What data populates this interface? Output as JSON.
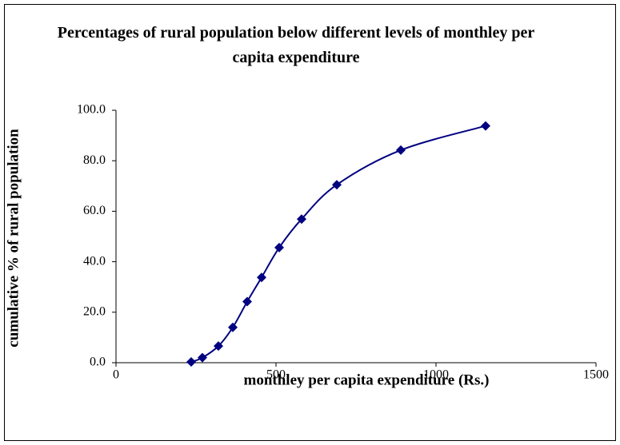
{
  "chart_data": {
    "type": "scatter",
    "title": "Percentages of rural population below different levels of monthley per capita expenditure",
    "x_label": "monthley per capita expenditure (Rs.)",
    "y_label": "cumulative % of rural population",
    "x": [
      235,
      270,
      320,
      365,
      410,
      455,
      510,
      580,
      690,
      890,
      1155
    ],
    "series": [
      {
        "color": "#000080",
        "values": [
          0.3,
          2.0,
          6.6,
          14.0,
          24.2,
          33.8,
          45.6,
          56.9,
          70.5,
          84.2,
          93.8
        ]
      }
    ],
    "xlim": [
      0,
      1500
    ],
    "xticks": [
      0,
      500,
      1000,
      1500
    ],
    "ylim": [
      0,
      100
    ],
    "yticks": [
      {
        "value": 0,
        "label": "0.0"
      },
      {
        "value": 20,
        "label": "20.0"
      },
      {
        "value": 40,
        "label": "40.0"
      },
      {
        "value": 60,
        "label": "60.0"
      },
      {
        "value": 80,
        "label": "80.0"
      },
      {
        "value": 100,
        "label": "100.0"
      }
    ],
    "grid": false
  }
}
